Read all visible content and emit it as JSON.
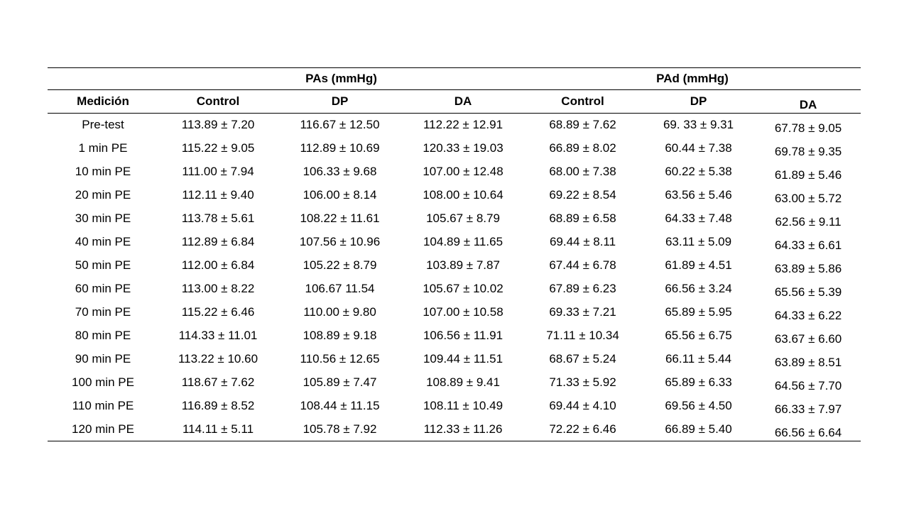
{
  "page": {
    "background_color": "#ffffff",
    "text_color": "#000000",
    "rule_color": "#000000"
  },
  "table": {
    "group_headers": {
      "empty": "",
      "pas": "PAs (mmHg)",
      "pad": "PAd (mmHg)"
    },
    "column_headers": {
      "medicion": "Medición",
      "pas_control": "Control",
      "pas_dp": "DP",
      "pas_da": "DA",
      "pad_control": "Control",
      "pad_dp": "DP",
      "pad_da": "DA"
    },
    "rows": [
      {
        "label": "Pre-test",
        "values": [
          "113.89 ± 7.20",
          "116.67 ± 12.50",
          "112.22 ± 12.91",
          "68.89 ± 7.62",
          "69. 33 ± 9.31",
          "67.78 ± 9.05"
        ]
      },
      {
        "label": "1 min PE",
        "values": [
          "115.22 ± 9.05",
          "112.89 ± 10.69",
          "120.33 ± 19.03",
          "66.89 ± 8.02",
          "60.44 ± 7.38",
          "69.78 ± 9.35"
        ]
      },
      {
        "label": "10 min PE",
        "values": [
          "111.00 ± 7.94",
          "106.33 ± 9.68",
          "107.00 ± 12.48",
          "68.00 ± 7.38",
          "60.22 ± 5.38",
          "61.89 ± 5.46"
        ]
      },
      {
        "label": "20 min PE",
        "values": [
          "112.11 ± 9.40",
          "106.00 ± 8.14",
          "108.00 ± 10.64",
          "69.22 ± 8.54",
          "63.56 ± 5.46",
          "63.00 ± 5.72"
        ]
      },
      {
        "label": "30 min PE",
        "values": [
          "113.78 ± 5.61",
          "108.22 ± 11.61",
          "105.67 ± 8.79",
          "68.89 ± 6.58",
          "64.33 ± 7.48",
          "62.56 ± 9.11"
        ]
      },
      {
        "label": "40 min PE",
        "values": [
          "112.89 ± 6.84",
          "107.56 ± 10.96",
          "104.89 ± 11.65",
          "69.44 ± 8.11",
          "63.11 ± 5.09",
          "64.33 ± 6.61"
        ]
      },
      {
        "label": "50 min PE",
        "values": [
          "112.00 ± 6.84",
          "105.22 ± 8.79",
          "103.89 ± 7.87",
          "67.44 ± 6.78",
          "61.89 ± 4.51",
          "63.89 ± 5.86"
        ]
      },
      {
        "label": "60 min PE",
        "values": [
          "113.00 ± 8.22",
          "106.67 11.54",
          "105.67 ± 10.02",
          "67.89 ± 6.23",
          "66.56 ± 3.24",
          "65.56 ± 5.39"
        ]
      },
      {
        "label": "70 min PE",
        "values": [
          "115.22 ± 6.46",
          "110.00 ± 9.80",
          "107.00 ± 10.58",
          "69.33 ± 7.21",
          "65.89 ± 5.95",
          "64.33 ± 6.22"
        ]
      },
      {
        "label": "80 min PE",
        "values": [
          "114.33 ± 11.01",
          "108.89 ± 9.18",
          "106.56 ± 11.91",
          "71.11 ± 10.34",
          "65.56 ± 6.75",
          "63.67 ± 6.60"
        ]
      },
      {
        "label": "90 min PE",
        "values": [
          "113.22 ± 10.60",
          "110.56 ± 12.65",
          "109.44 ± 11.51",
          "68.67 ± 5.24",
          "66.11 ± 5.44",
          "63.89 ± 8.51"
        ]
      },
      {
        "label": "100 min PE",
        "values": [
          "118.67 ± 7.62",
          "105.89 ± 7.47",
          "108.89 ± 9.41",
          "71.33 ± 5.92",
          "65.89 ± 6.33",
          "64.56 ± 7.70"
        ]
      },
      {
        "label": "110 min PE",
        "values": [
          "116.89 ± 8.52",
          "108.44 ± 11.15",
          "108.11 ± 10.49",
          "69.44 ± 4.10",
          "69.56 ± 4.50",
          "66.33 ± 7.97"
        ]
      },
      {
        "label": "120 min PE",
        "values": [
          "114.11 ± 5.11",
          "105.78 ± 7.92",
          "112.33 ± 11.26",
          "72.22 ± 6.46",
          "66.89 ± 5.40",
          "66.56 ± 6.64"
        ]
      }
    ]
  },
  "chart_data": {
    "type": "table",
    "title": "",
    "group_columns": [
      "PAs (mmHg)",
      "PAd (mmHg)"
    ],
    "columns": [
      "Medición",
      "PAs Control",
      "PAs DP",
      "PAs DA",
      "PAd Control",
      "PAd DP",
      "PAd DA"
    ],
    "units": "mmHg"
  }
}
